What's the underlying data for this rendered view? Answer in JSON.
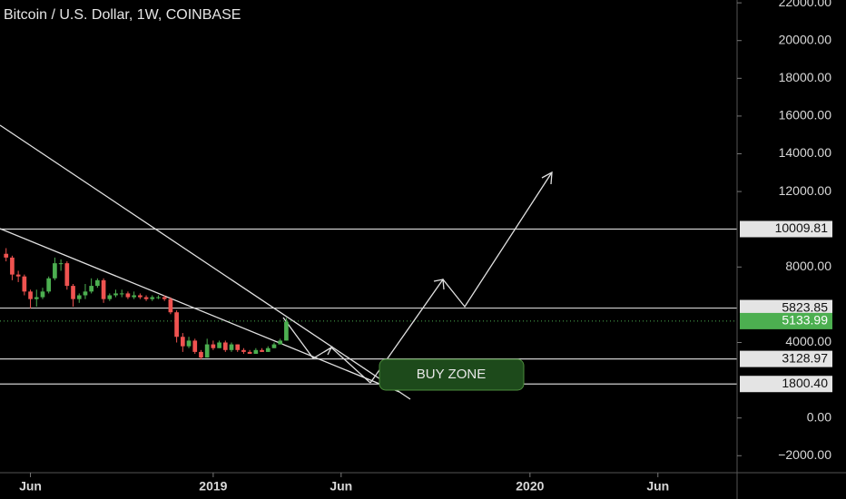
{
  "chart_data": {
    "type": "candlestick",
    "title": "Bitcoin / U.S. Dollar, 1W, COINBASE",
    "x": [
      0,
      1,
      2,
      3,
      4,
      5,
      6,
      7,
      8,
      9,
      10,
      11,
      12,
      13,
      14,
      15,
      16,
      17,
      18,
      19,
      20,
      21,
      22,
      23,
      24,
      25,
      26,
      27,
      28,
      29,
      30,
      31,
      32,
      33,
      34,
      35,
      36,
      37,
      38,
      39,
      40,
      41,
      42,
      43,
      44,
      45,
      46
    ],
    "open": [
      8700,
      8500,
      7600,
      7500,
      6700,
      6300,
      6400,
      6700,
      7400,
      8200,
      8200,
      7000,
      6300,
      6500,
      6700,
      7000,
      7300,
      6300,
      6500,
      6600,
      6600,
      6400,
      6500,
      6400,
      6300,
      6400,
      6400,
      6300,
      5600,
      4300,
      3800,
      4100,
      3500,
      3200,
      3900,
      3700,
      4000,
      3600,
      3900,
      3600,
      3500,
      3400,
      3600,
      3500,
      3700,
      3900,
      4100
    ],
    "high": [
      9000,
      8600,
      7800,
      7600,
      6800,
      6800,
      6900,
      7500,
      8500,
      8400,
      8300,
      7100,
      6600,
      7100,
      7400,
      7400,
      7400,
      6600,
      6800,
      6800,
      6700,
      6700,
      6600,
      6500,
      6500,
      6500,
      6500,
      6400,
      5700,
      4500,
      4300,
      4200,
      3600,
      4200,
      4100,
      4100,
      4100,
      4000,
      3900,
      3700,
      3600,
      3700,
      3700,
      3800,
      4000,
      4200,
      5300
    ],
    "low": [
      8300,
      7300,
      7200,
      6500,
      5800,
      5900,
      6300,
      6600,
      7300,
      7800,
      6800,
      5900,
      6100,
      6300,
      6600,
      6900,
      6100,
      6200,
      6400,
      6400,
      6300,
      6300,
      6300,
      6200,
      6200,
      6300,
      6200,
      5500,
      4000,
      3500,
      3700,
      3400,
      3100,
      3200,
      3600,
      3700,
      3500,
      3500,
      3500,
      3400,
      3400,
      3400,
      3500,
      3500,
      3700,
      3900,
      4100
    ],
    "close": [
      8500,
      7600,
      7500,
      6700,
      6300,
      6400,
      6700,
      7400,
      8200,
      8200,
      7000,
      6300,
      6500,
      6700,
      7000,
      7300,
      6300,
      6500,
      6600,
      6600,
      6400,
      6500,
      6400,
      6300,
      6400,
      6400,
      6300,
      5600,
      4300,
      3800,
      4100,
      3500,
      3200,
      3900,
      3700,
      4000,
      3600,
      3900,
      3600,
      3500,
      3400,
      3600,
      3500,
      3700,
      3900,
      4100,
      5100
    ],
    "up_color": "#4caf50",
    "down_color": "#ef5350",
    "xlim": [
      -1,
      120
    ],
    "xticks": [
      {
        "value": 4,
        "label": "Jun"
      },
      {
        "value": 34,
        "label": "2019"
      },
      {
        "value": 55,
        "label": "Jun"
      },
      {
        "value": 86,
        "label": "2020"
      },
      {
        "value": 107,
        "label": "Jun"
      }
    ],
    "ylim": [
      -2900,
      22150
    ],
    "yticks": [
      {
        "value": 22000,
        "label": "22000.00"
      },
      {
        "value": 20000,
        "label": "20000.00"
      },
      {
        "value": 18000,
        "label": "18000.00"
      },
      {
        "value": 16000,
        "label": "16000.00"
      },
      {
        "value": 14000,
        "label": "14000.00"
      },
      {
        "value": 12000,
        "label": "12000.00"
      },
      {
        "value": 8000,
        "label": "8000.00"
      },
      {
        "value": 4000,
        "label": "4000.00"
      },
      {
        "value": 0,
        "label": "0.00"
      },
      {
        "value": -2000,
        "label": "−2000.00"
      }
    ],
    "levels": [
      {
        "value": 10009.81,
        "label": "10009.81"
      },
      {
        "value": 5823.85,
        "label": "5823.85"
      },
      {
        "value": 3128.97,
        "label": "3128.97"
      },
      {
        "value": 1800.4,
        "label": "1800.40"
      }
    ],
    "last_price": {
      "value": 5133.99,
      "label": "5133.99"
    },
    "annotations": [
      "BUY ZONE"
    ]
  }
}
